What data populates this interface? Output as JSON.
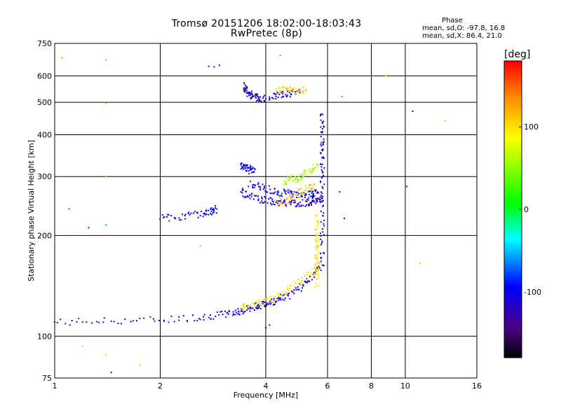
{
  "header": {
    "title_line1": "Tromsø 20151206 18:02:00-18:03:43",
    "title_line2": "RwPretec (8p)",
    "stats_title": "Phase",
    "stats_o": "mean, sd,O:  -97.8, 16.8",
    "stats_x": "mean, sd,X:  86.4, 21.0"
  },
  "colorbar": {
    "unit_label": "[deg]",
    "tick_labels": [
      "100",
      "0",
      "-100"
    ],
    "ticks": [
      100,
      0,
      -100
    ],
    "range": [
      -180,
      180
    ]
  },
  "chart_data": {
    "type": "scatter",
    "title": "Tromsø 20151206 18:02:00-18:03:43",
    "subtitle": "RwPretec (8p)",
    "xlabel": "Frequency [MHz]",
    "ylabel": "Stationary phase Virtual Height [km]",
    "xscale": "log",
    "yscale": "log",
    "xlim": [
      1,
      16
    ],
    "ylim": [
      75,
      750
    ],
    "xticks": [
      1,
      2,
      4,
      6,
      8,
      10,
      16
    ],
    "xtick_labels": [
      "1",
      "2",
      "4",
      "6",
      "8",
      "10",
      "16"
    ],
    "yticks": [
      75,
      100,
      200,
      300,
      400,
      500,
      600,
      750
    ],
    "ytick_labels": [
      "75",
      "100",
      "200",
      "300",
      "400",
      "500",
      "600",
      "750"
    ],
    "grid": true,
    "color_variable": "Phase [deg]",
    "traces": [
      {
        "x": [
          1.0,
          1.4,
          2.0,
          2.6,
          3.0,
          3.3,
          3.5,
          3.7,
          3.9,
          4.1,
          4.3,
          4.6,
          5.0,
          5.4,
          5.7
        ],
        "y": [
          110,
          111,
          112,
          114,
          116,
          118,
          120,
          122,
          124,
          126,
          128,
          132,
          140,
          150,
          160
        ],
        "phase": -100
      },
      {
        "x": [
          3.4,
          3.6,
          3.9,
          4.2,
          4.6,
          5.0,
          5.4,
          5.7
        ],
        "y": [
          122,
          124,
          126,
          130,
          137,
          145,
          155,
          165
        ],
        "phase": 100
      },
      {
        "x": [
          3.4,
          3.6,
          3.9,
          4.2,
          4.5,
          4.8,
          5.1,
          5.4,
          5.6,
          5.8
        ],
        "y": [
          270,
          262,
          256,
          252,
          250,
          250,
          250,
          252,
          255,
          258
        ],
        "phase": -110
      },
      {
        "x": [
          3.6,
          3.9,
          4.2,
          4.5,
          4.8,
          5.1,
          5.4,
          5.6
        ],
        "y": [
          285,
          278,
          272,
          268,
          266,
          265,
          266,
          268
        ],
        "phase": -95
      },
      {
        "x": [
          4.3,
          4.6,
          4.9,
          5.2,
          5.5
        ],
        "y": [
          250,
          255,
          265,
          275,
          285
        ],
        "phase": 110
      },
      {
        "x": [
          4.5,
          4.8,
          5.0,
          5.3,
          5.6
        ],
        "y": [
          290,
          295,
          300,
          310,
          320
        ],
        "phase": 60
      },
      {
        "x": [
          5.8,
          5.8,
          5.8,
          5.8,
          5.8,
          5.8,
          5.8
        ],
        "y": [
          160,
          200,
          250,
          300,
          350,
          400,
          460
        ],
        "phase": -110
      },
      {
        "x": [
          5.6,
          5.6,
          5.6,
          5.6,
          5.6
        ],
        "y": [
          140,
          160,
          180,
          200,
          230
        ],
        "phase": 100
      },
      {
        "x": [
          3.5,
          3.5,
          3.6,
          3.7,
          3.8,
          4.0
        ],
        "y": [
          560,
          545,
          530,
          520,
          515,
          512
        ],
        "phase": -120
      },
      {
        "x": [
          4.1,
          4.4,
          4.7,
          5.0
        ],
        "y": [
          520,
          525,
          530,
          535
        ],
        "phase": -100
      },
      {
        "x": [
          4.3,
          4.6,
          4.9,
          5.2
        ],
        "y": [
          540,
          550,
          540,
          545
        ],
        "phase": 110
      },
      {
        "x": [
          3.4,
          3.5,
          3.6,
          3.7
        ],
        "y": [
          325,
          320,
          315,
          310
        ],
        "phase": -100
      },
      {
        "x": [
          2.0,
          2.3,
          2.6,
          2.8,
          2.9
        ],
        "y": [
          225,
          228,
          232,
          236,
          240
        ],
        "phase": -100
      }
    ],
    "points": [
      {
        "x": 2.75,
        "y": 640,
        "phase": -110
      },
      {
        "x": 2.85,
        "y": 638,
        "phase": -110
      },
      {
        "x": 2.95,
        "y": 645,
        "phase": -100
      },
      {
        "x": 1.05,
        "y": 680,
        "phase": 20
      },
      {
        "x": 1.4,
        "y": 670,
        "phase": 10
      },
      {
        "x": 1.4,
        "y": 497,
        "phase": 20
      },
      {
        "x": 1.4,
        "y": 300,
        "phase": 120
      },
      {
        "x": 1.4,
        "y": 215,
        "phase": -60
      },
      {
        "x": 1.1,
        "y": 240,
        "phase": 170
      },
      {
        "x": 1.25,
        "y": 211,
        "phase": -100
      },
      {
        "x": 2.6,
        "y": 186,
        "phase": 20
      },
      {
        "x": 4.4,
        "y": 690,
        "phase": 150
      },
      {
        "x": 6.3,
        "y": 500,
        "phase": 150
      },
      {
        "x": 6.6,
        "y": 520,
        "phase": 150
      },
      {
        "x": 6.5,
        "y": 270,
        "phase": -100
      },
      {
        "x": 6.7,
        "y": 225,
        "phase": -100
      },
      {
        "x": 8.8,
        "y": 600,
        "phase": 100
      },
      {
        "x": 10.5,
        "y": 470,
        "phase": -100
      },
      {
        "x": 13.0,
        "y": 440,
        "phase": 120
      },
      {
        "x": 10.1,
        "y": 280,
        "phase": -100
      },
      {
        "x": 8.0,
        "y": 275,
        "phase": 150
      },
      {
        "x": 11.0,
        "y": 165,
        "phase": 120
      },
      {
        "x": 1.2,
        "y": 93,
        "phase": 110
      },
      {
        "x": 1.4,
        "y": 88,
        "phase": 100
      },
      {
        "x": 1.75,
        "y": 82,
        "phase": 120
      },
      {
        "x": 1.45,
        "y": 78,
        "phase": -100
      },
      {
        "x": 4.0,
        "y": 106,
        "phase": -100
      },
      {
        "x": 4.1,
        "y": 108,
        "phase": -110
      }
    ]
  }
}
